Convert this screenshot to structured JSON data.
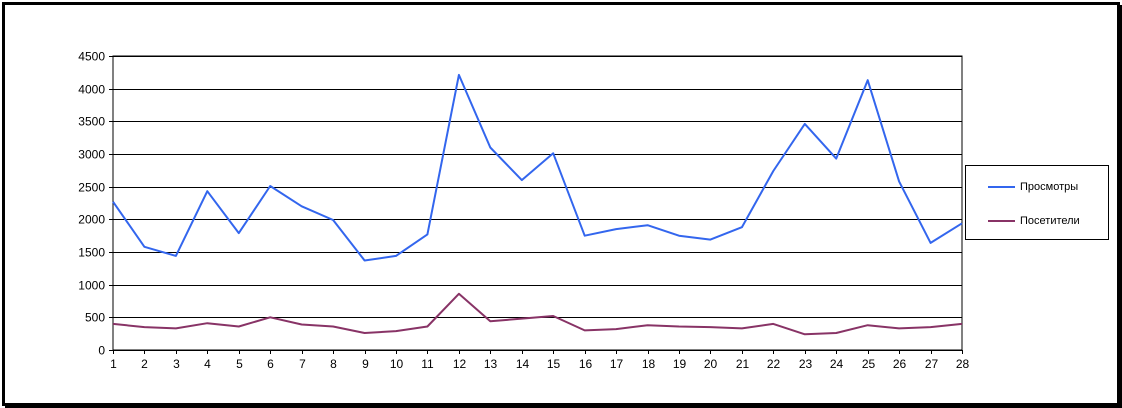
{
  "chart_data": {
    "type": "line",
    "title": "",
    "xlabel": "",
    "ylabel": "",
    "x": [
      1,
      2,
      3,
      4,
      5,
      6,
      7,
      8,
      9,
      10,
      11,
      12,
      13,
      14,
      15,
      16,
      17,
      18,
      19,
      20,
      21,
      22,
      23,
      24,
      25,
      26,
      27,
      28
    ],
    "ylim": [
      0,
      4500
    ],
    "yticks": [
      0,
      500,
      1000,
      1500,
      2000,
      2500,
      3000,
      3500,
      4000,
      4500
    ],
    "grid": true,
    "legend_position": "right",
    "series": [
      {
        "name": "Просмотры",
        "color": "#3366ee",
        "values": [
          2270,
          1580,
          1440,
          2430,
          1790,
          2510,
          2200,
          1990,
          1370,
          1440,
          1770,
          4210,
          3100,
          2600,
          3010,
          1750,
          1850,
          1910,
          1750,
          1690,
          1880,
          2740,
          3460,
          2930,
          4130,
          2580,
          1640,
          1940
        ]
      },
      {
        "name": "Посетители",
        "color": "#883366",
        "values": [
          400,
          350,
          330,
          410,
          360,
          500,
          390,
          360,
          260,
          290,
          360,
          860,
          440,
          480,
          520,
          300,
          320,
          380,
          360,
          350,
          330,
          400,
          240,
          260,
          380,
          330,
          350,
          400
        ]
      }
    ]
  }
}
